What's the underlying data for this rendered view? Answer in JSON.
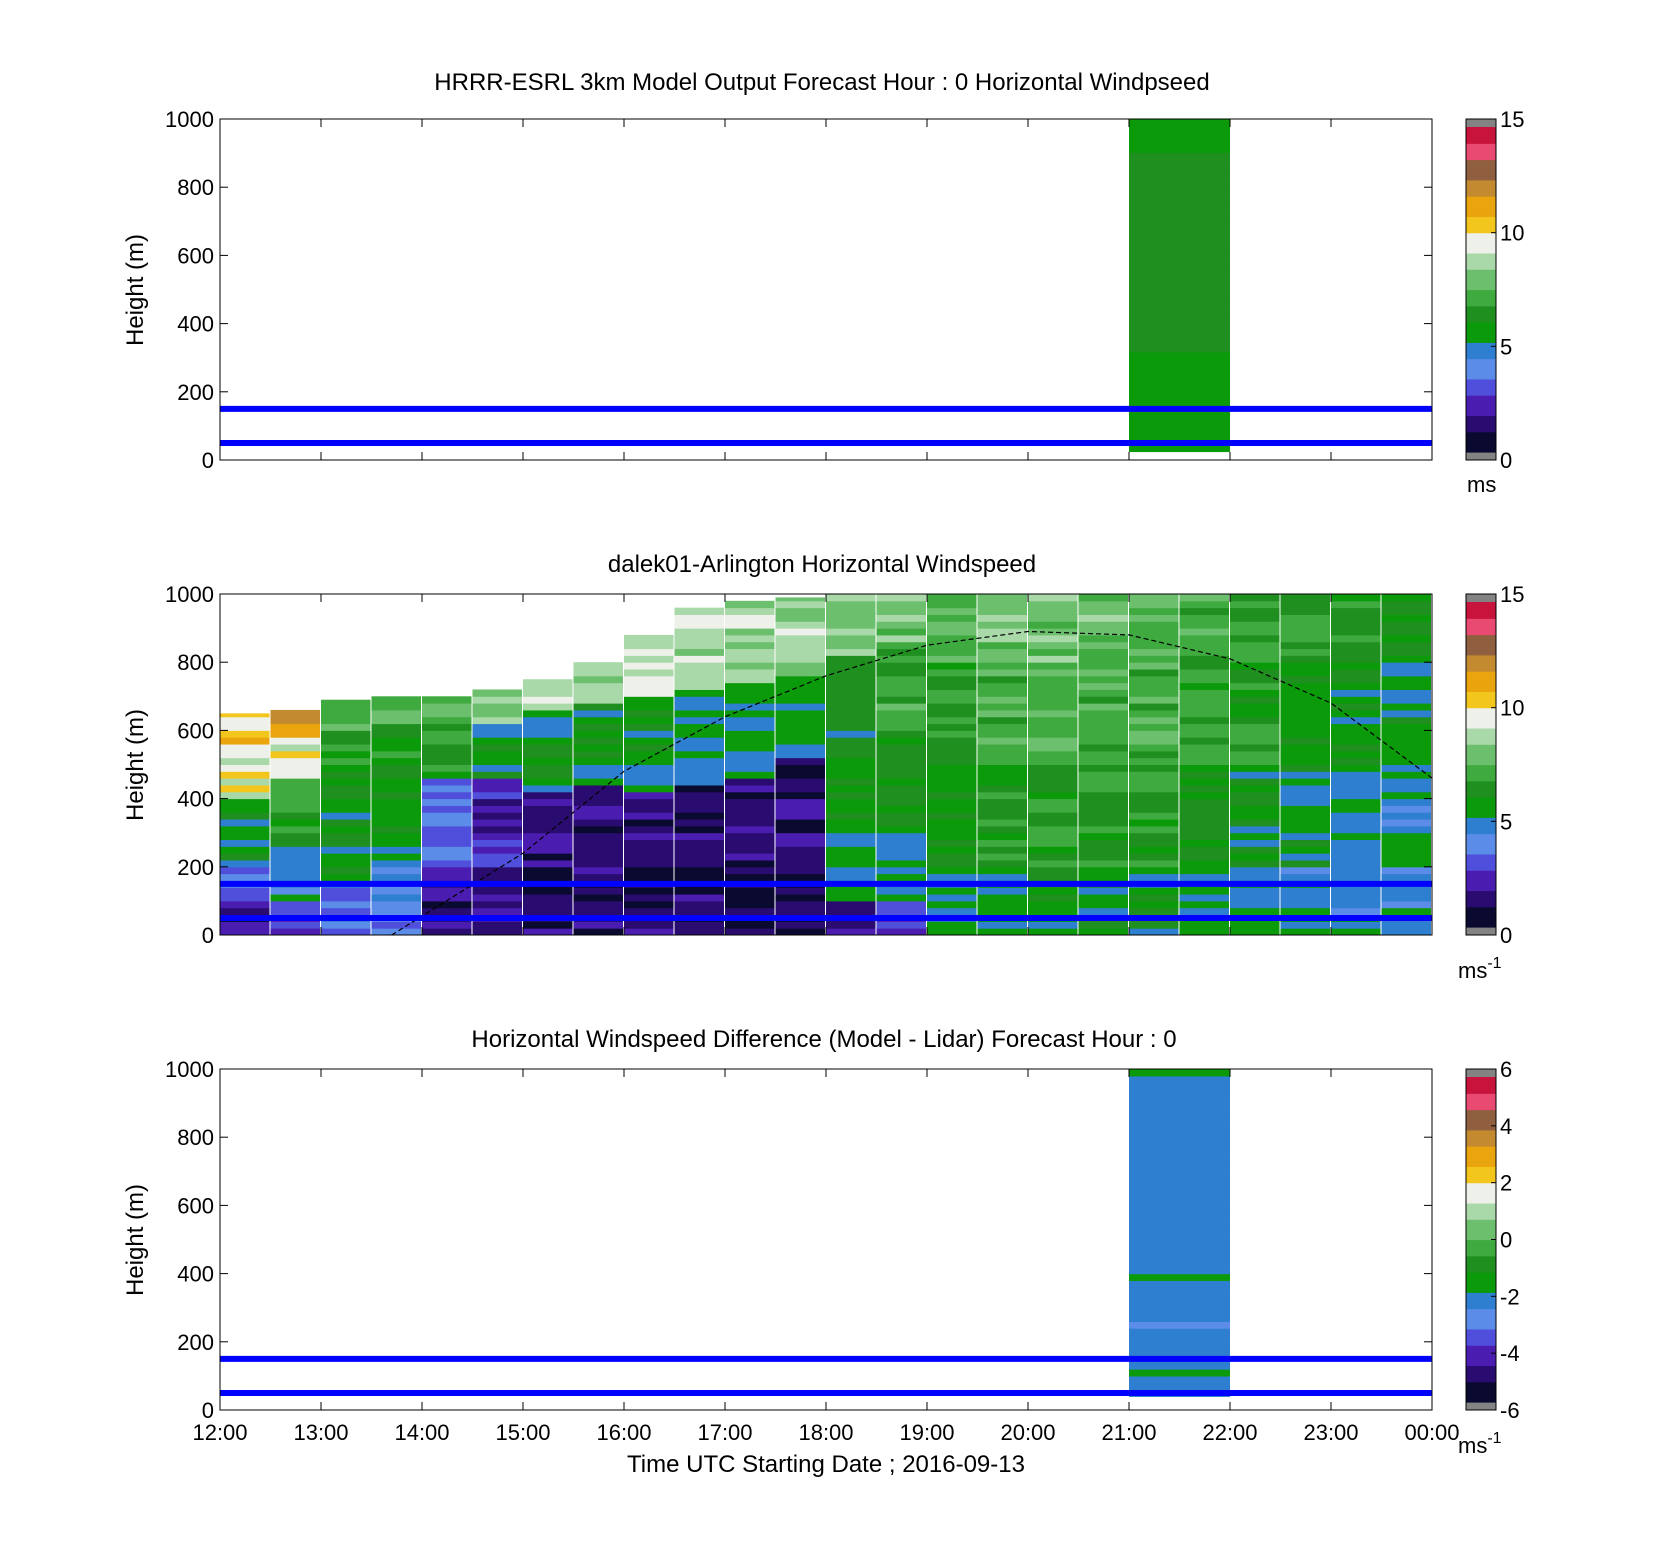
{
  "colors": {
    "windspeed_scale": [
      "#838383",
      "#0a0a30",
      "#2a0c70",
      "#4b1cb0",
      "#4f4fdc",
      "#5a8ce8",
      "#2e7fd0",
      "#0a9a0a",
      "#1f8f1f",
      "#3faa3f",
      "#6cbf6c",
      "#a9d8a9",
      "#eef0ea",
      "#f2c61c",
      "#e9a40e",
      "#c48a30",
      "#8f5f3f",
      "#e84a72",
      "#c8143c",
      "#838383"
    ],
    "overlay_lines": "#0000ff",
    "trend_line": "#000000"
  },
  "chart_data": [
    {
      "panel": "model",
      "type": "heatmap",
      "title": "HRRR-ESRL 3km Model Output   Forecast Hour : 0 Horizontal Windpseed",
      "xlabel": "",
      "ylabel": "Height (m)",
      "xlim": [
        12,
        24
      ],
      "ylim": [
        0,
        1000
      ],
      "yticks": [
        "0",
        "200",
        "400",
        "600",
        "800",
        "1000"
      ],
      "x_tick_hours": [
        12,
        13,
        14,
        15,
        16,
        17,
        18,
        19,
        20,
        21,
        22,
        23,
        24
      ],
      "colorbar": {
        "min": 0,
        "max": 15,
        "ticks": [
          "0",
          "5",
          "10",
          "15"
        ],
        "unit": "ms"
      },
      "columns": [
        {
          "x_start": 21,
          "x_end": 22,
          "y_start": 25,
          "values": [
            5.2,
            5.2,
            5.3,
            5.3,
            5.5,
            5.7,
            5.9,
            6.0,
            6.1,
            6.2,
            6.2,
            6.2,
            6.2,
            6.2,
            6.1,
            6.0,
            6.0,
            5.9,
            5.8,
            5.8
          ]
        }
      ],
      "hlines": [
        50,
        150
      ]
    },
    {
      "panel": "lidar",
      "type": "heatmap",
      "title": "dalek01-Arlington  Horizontal Windspeed",
      "xlabel": "",
      "ylabel": "Height (m)",
      "xlim": [
        12,
        24
      ],
      "ylim": [
        0,
        1000
      ],
      "yticks": [
        "0",
        "200",
        "400",
        "600",
        "800",
        "1000"
      ],
      "x_tick_hours": [
        12,
        13,
        14,
        15,
        16,
        17,
        18,
        19,
        20,
        21,
        22,
        23,
        24
      ],
      "colorbar": {
        "min": 0,
        "max": 15,
        "ticks": [
          "0",
          "5",
          "10",
          "15"
        ],
        "unit": "ms",
        "unit_sup": "-1"
      },
      "profiles": [
        {
          "hour": 12.0,
          "top": 650,
          "layers": [
            [
              0,
              1.5
            ],
            [
              100,
              3.5
            ],
            [
              200,
              5.5
            ],
            [
              400,
              9.5
            ],
            [
              550,
              10.5
            ]
          ]
        },
        {
          "hour": 12.5,
          "top": 660,
          "layers": [
            [
              0,
              2.5
            ],
            [
              100,
              4.5
            ],
            [
              250,
              6.5
            ],
            [
              450,
              9.5
            ],
            [
              580,
              11.5
            ]
          ]
        },
        {
          "hour": 13.0,
          "top": 690,
          "layers": [
            [
              0,
              3.5
            ],
            [
              150,
              5.5
            ],
            [
              400,
              6.0
            ],
            [
              600,
              7.5
            ]
          ]
        },
        {
          "hour": 13.5,
          "top": 700,
          "layers": [
            [
              0,
              4.0
            ],
            [
              200,
              5.5
            ],
            [
              450,
              6.5
            ],
            [
              620,
              7.5
            ]
          ]
        },
        {
          "hour": 14.0,
          "top": 700,
          "layers": [
            [
              0,
              1.5
            ],
            [
              200,
              3.0
            ],
            [
              450,
              6.5
            ],
            [
              620,
              7.5
            ]
          ]
        },
        {
          "hour": 14.5,
          "top": 720,
          "layers": [
            [
              0,
              1.5
            ],
            [
              200,
              2.0
            ],
            [
              450,
              5.5
            ],
            [
              620,
              8.5
            ]
          ]
        },
        {
          "hour": 15.0,
          "top": 750,
          "layers": [
            [
              0,
              1.0
            ],
            [
              200,
              1.5
            ],
            [
              420,
              5.5
            ],
            [
              650,
              8.8
            ]
          ]
        },
        {
          "hour": 15.5,
          "top": 800,
          "layers": [
            [
              0,
              1.2
            ],
            [
              200,
              1.5
            ],
            [
              430,
              5.5
            ],
            [
              680,
              9.0
            ]
          ]
        },
        {
          "hour": 16.0,
          "top": 880,
          "layers": [
            [
              0,
              1.0
            ],
            [
              200,
              1.5
            ],
            [
              420,
              5.2
            ],
            [
              700,
              9.2
            ]
          ]
        },
        {
          "hour": 16.5,
          "top": 960,
          "layers": [
            [
              0,
              1.0
            ],
            [
              200,
              1.5
            ],
            [
              430,
              5.0
            ],
            [
              720,
              9.0
            ]
          ]
        },
        {
          "hour": 17.0,
          "top": 980,
          "layers": [
            [
              0,
              0.8
            ],
            [
              200,
              1.2
            ],
            [
              450,
              5.0
            ],
            [
              740,
              8.8
            ]
          ]
        },
        {
          "hour": 17.5,
          "top": 990,
          "layers": [
            [
              0,
              0.8
            ],
            [
              200,
              1.0
            ],
            [
              520,
              5.0
            ],
            [
              760,
              8.5
            ]
          ]
        },
        {
          "hour": 18.0,
          "top": 1000,
          "layers": [
            [
              0,
              1.5
            ],
            [
              100,
              5.0
            ],
            [
              300,
              5.5
            ],
            [
              600,
              6.5
            ],
            [
              820,
              8.5
            ]
          ]
        },
        {
          "hour": 18.5,
          "top": 1000,
          "layers": [
            [
              0,
              2.8
            ],
            [
              100,
              5.0
            ],
            [
              300,
              5.8
            ],
            [
              600,
              6.8
            ],
            [
              850,
              8.2
            ]
          ]
        },
        {
          "hour": 19.0,
          "top": 1000,
          "layers": [
            [
              0,
              5.0
            ],
            [
              200,
              5.8
            ],
            [
              500,
              6.5
            ],
            [
              800,
              7.6
            ]
          ]
        },
        {
          "hour": 19.5,
          "top": 1000,
          "layers": [
            [
              0,
              5.2
            ],
            [
              200,
              6.2
            ],
            [
              500,
              7.2
            ],
            [
              800,
              8.0
            ]
          ]
        },
        {
          "hour": 20.0,
          "top": 1000,
          "layers": [
            [
              0,
              5.5
            ],
            [
              200,
              6.5
            ],
            [
              500,
              7.5
            ],
            [
              800,
              8.0
            ]
          ]
        },
        {
          "hour": 20.5,
          "top": 1000,
          "layers": [
            [
              0,
              5.5
            ],
            [
              200,
              6.5
            ],
            [
              500,
              7.3
            ],
            [
              800,
              7.8
            ]
          ]
        },
        {
          "hour": 21.0,
          "top": 1000,
          "layers": [
            [
              0,
              5.5
            ],
            [
              200,
              6.2
            ],
            [
              500,
              7.0
            ],
            [
              800,
              7.5
            ]
          ]
        },
        {
          "hour": 21.5,
          "top": 1000,
          "layers": [
            [
              0,
              5.0
            ],
            [
              200,
              5.8
            ],
            [
              500,
              6.5
            ],
            [
              800,
              7.2
            ]
          ]
        },
        {
          "hour": 22.0,
          "top": 1000,
          "layers": [
            [
              0,
              5.0
            ],
            [
              200,
              5.5
            ],
            [
              500,
              6.2
            ],
            [
              800,
              6.8
            ]
          ]
        },
        {
          "hour": 22.5,
          "top": 1000,
          "layers": [
            [
              0,
              4.8
            ],
            [
              200,
              5.3
            ],
            [
              500,
              5.8
            ],
            [
              800,
              6.5
            ]
          ]
        },
        {
          "hour": 23.0,
          "top": 1000,
          "layers": [
            [
              0,
              4.5
            ],
            [
              200,
              5.0
            ],
            [
              500,
              5.5
            ],
            [
              800,
              6.2
            ]
          ]
        },
        {
          "hour": 23.5,
          "top": 1000,
          "layers": [
            [
              0,
              4.5
            ],
            [
              200,
              4.8
            ],
            [
              500,
              5.2
            ],
            [
              800,
              5.8
            ]
          ]
        }
      ],
      "hlines": [
        50,
        150
      ],
      "trend_line": {
        "style": "dashed",
        "x": [
          13.7,
          15.0,
          16.0,
          17.0,
          18.0,
          19.0,
          20.0,
          21.0,
          22.0,
          23.0,
          24.0
        ],
        "y": [
          0,
          240,
          480,
          640,
          760,
          850,
          890,
          880,
          810,
          680,
          460
        ]
      }
    },
    {
      "panel": "difference",
      "type": "heatmap",
      "title": "Horizontal Windspeed Difference (Model - Lidar) Forecast Hour : 0",
      "xlabel": "Time UTC  Starting Date ; 2016-09-13",
      "ylabel": "Height (m)",
      "xlim": [
        12,
        24
      ],
      "ylim": [
        0,
        1000
      ],
      "yticks": [
        "0",
        "200",
        "400",
        "600",
        "800",
        "1000"
      ],
      "xticks": [
        "12:00",
        "13:00",
        "14:00",
        "15:00",
        "16:00",
        "17:00",
        "18:00",
        "19:00",
        "20:00",
        "21:00",
        "22:00",
        "23:00",
        "00:00"
      ],
      "x_tick_hours": [
        12,
        13,
        14,
        15,
        16,
        17,
        18,
        19,
        20,
        21,
        22,
        23,
        24
      ],
      "colorbar": {
        "min": -6,
        "max": 6,
        "ticks": [
          "-6",
          "-4",
          "-2",
          "0",
          "2",
          "4",
          "6"
        ],
        "unit": "ms",
        "unit_sup": "-1"
      },
      "columns": [
        {
          "x_start": 21,
          "x_end": 22,
          "y_start": 40,
          "values": [
            -2.3,
            -2.1,
            -2.4,
            -2.0,
            -2.5,
            -2.2,
            -2.6,
            -2.1,
            -2.4,
            -2.3,
            -2.7,
            -2.2,
            -2.5,
            -2.1,
            -2.6,
            -2.3,
            -2.4,
            -2.0,
            -2.5,
            -2.2,
            -2.6,
            -2.3,
            -2.4,
            -2.1,
            -2.5,
            -2.2,
            -2.6,
            -2.4,
            -2.3,
            -2.1,
            -2.5,
            -2.2,
            -2.4,
            -2.6,
            -2.3,
            -2.1,
            -2.5,
            -2.2,
            -2.4,
            -2.3,
            -2.6,
            -2.1,
            -2.4,
            -2.3,
            -2.5,
            -2.2,
            -2.4,
            -2.0
          ]
        }
      ],
      "hlines": [
        50,
        150
      ]
    }
  ]
}
